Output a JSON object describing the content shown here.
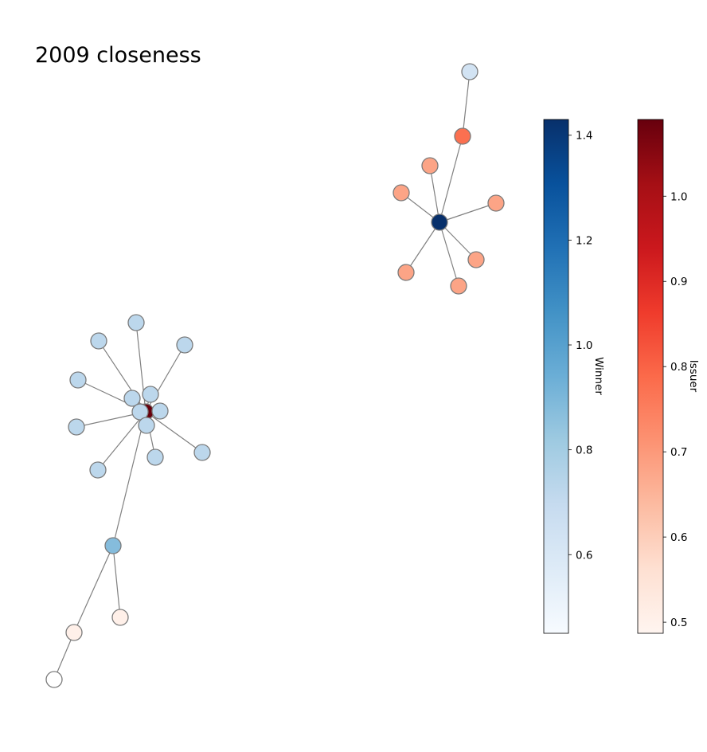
{
  "title": "2009 closeness",
  "edge_color": "#808080",
  "node_outline_color": "#7a7a7a",
  "colorbars": {
    "winner": {
      "label": "Winner",
      "colormap": "Blues",
      "range": [
        0.45,
        1.43
      ],
      "ticks": [
        "0.6",
        "0.8",
        "1.0",
        "1.2",
        "1.4"
      ],
      "stops": [
        "#f7fbff",
        "#deebf7",
        "#c6dbef",
        "#9ecae1",
        "#6baed6",
        "#4292c6",
        "#2171b5",
        "#08519c",
        "#08306b"
      ]
    },
    "issuer": {
      "label": "Issuer",
      "colormap": "Reds",
      "range": [
        0.487,
        1.09
      ],
      "ticks": [
        "0.5",
        "0.6",
        "0.7",
        "0.8",
        "0.9",
        "1.0"
      ],
      "stops": [
        "#fff5f0",
        "#fee0d2",
        "#fcbba1",
        "#fc9272",
        "#fb6a4a",
        "#ef3b2c",
        "#cb181d",
        "#a50f15",
        "#67000d"
      ]
    }
  },
  "graph": {
    "nodes": [
      {
        "id": "W1",
        "color": "#08306b"
      },
      {
        "id": "I1",
        "color": "#d2e3f3"
      },
      {
        "id": "I2",
        "color": "#fb7050"
      },
      {
        "id": "I3",
        "color": "#fca486"
      },
      {
        "id": "I4",
        "color": "#fca486"
      },
      {
        "id": "I5",
        "color": "#fca486"
      },
      {
        "id": "I6",
        "color": "#fca486"
      },
      {
        "id": "I7",
        "color": "#fca486"
      },
      {
        "id": "I8",
        "color": "#fca486"
      },
      {
        "id": "W2",
        "color": "#67000d"
      },
      {
        "id": "N1",
        "color": "#bcd7ec"
      },
      {
        "id": "N2",
        "color": "#bcd7ec"
      },
      {
        "id": "N3",
        "color": "#bcd7ec"
      },
      {
        "id": "N4",
        "color": "#bcd7ec"
      },
      {
        "id": "N5",
        "color": "#bcd7ec"
      },
      {
        "id": "N6",
        "color": "#bcd7ec"
      },
      {
        "id": "N7",
        "color": "#bcd7ec"
      },
      {
        "id": "N8",
        "color": "#bcd7ec"
      },
      {
        "id": "N9",
        "color": "#bcd7ec"
      },
      {
        "id": "N10",
        "color": "#bcd7ec"
      },
      {
        "id": "N11",
        "color": "#bcd7ec"
      },
      {
        "id": "N12",
        "color": "#bcd7ec"
      },
      {
        "id": "N13",
        "color": "#bcd7ec"
      },
      {
        "id": "M1",
        "color": "#85bcdc"
      },
      {
        "id": "P1",
        "color": "#fff0e9"
      },
      {
        "id": "P2",
        "color": "#fff0e9"
      },
      {
        "id": "P3",
        "color": "#ffffff"
      }
    ],
    "edges": [
      [
        "W1",
        "I2"
      ],
      [
        "I2",
        "I1"
      ],
      [
        "W1",
        "I3"
      ],
      [
        "W1",
        "I4"
      ],
      [
        "W1",
        "I5"
      ],
      [
        "W1",
        "I6"
      ],
      [
        "W1",
        "I7"
      ],
      [
        "W1",
        "I8"
      ],
      [
        "W2",
        "N1"
      ],
      [
        "W2",
        "N2"
      ],
      [
        "W2",
        "N3"
      ],
      [
        "W2",
        "N4"
      ],
      [
        "W2",
        "N5"
      ],
      [
        "W2",
        "N6"
      ],
      [
        "W2",
        "N7"
      ],
      [
        "W2",
        "N8"
      ],
      [
        "W2",
        "N9"
      ],
      [
        "W2",
        "N10"
      ],
      [
        "W2",
        "N11"
      ],
      [
        "W2",
        "N12"
      ],
      [
        "W2",
        "N13"
      ],
      [
        "W2",
        "M1"
      ],
      [
        "M1",
        "P1"
      ],
      [
        "M1",
        "P2"
      ],
      [
        "P2",
        "P3"
      ]
    ]
  }
}
